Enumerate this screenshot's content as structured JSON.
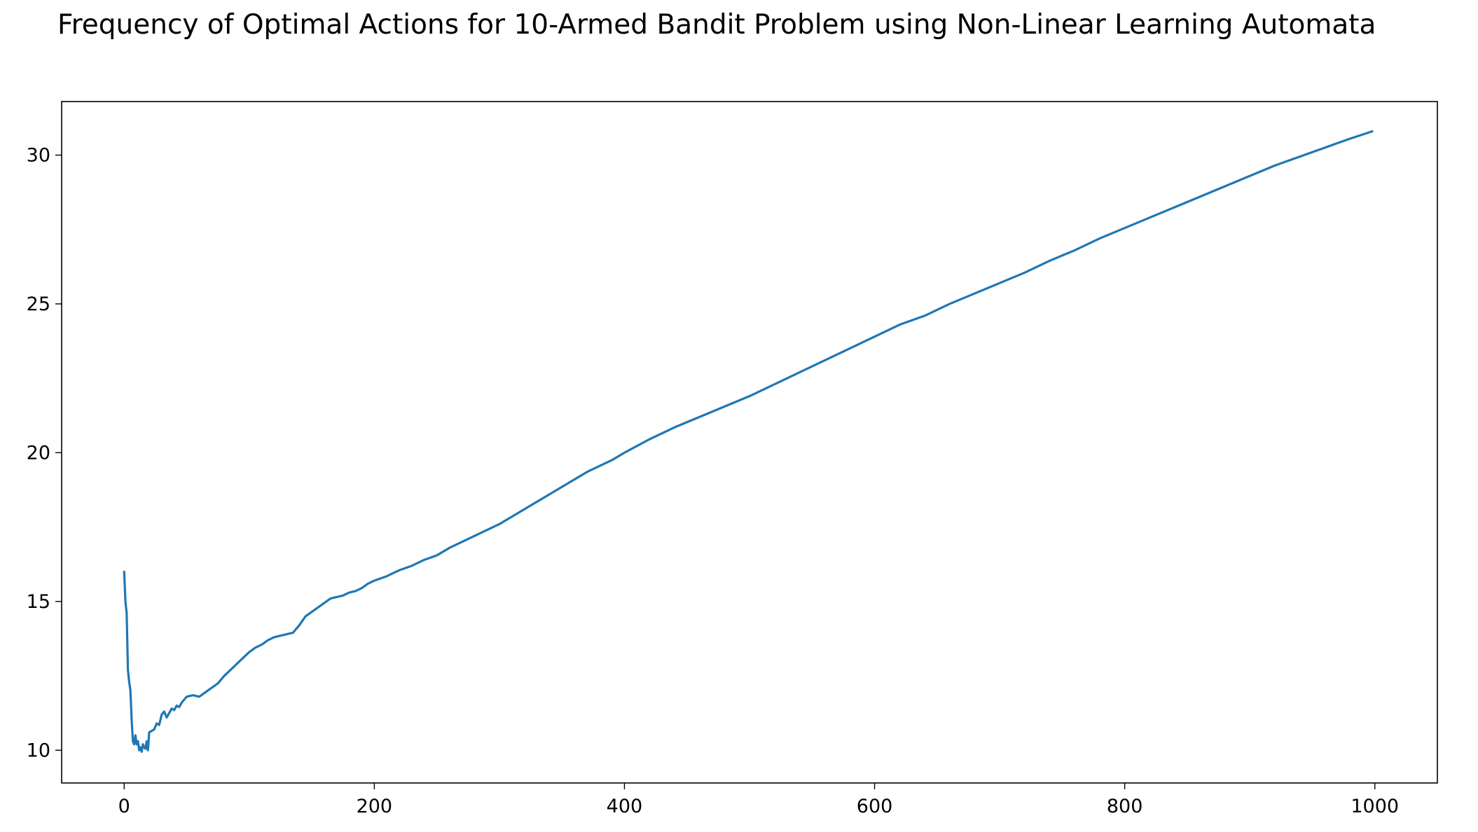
{
  "chart_data": {
    "type": "line",
    "title": "Frequency of Optimal Actions for 10-Armed Bandit Problem using Non-Linear Learning Automata",
    "xlabel": "",
    "ylabel": "",
    "xlim": [
      -50,
      1050
    ],
    "ylim": [
      8.9,
      31.8
    ],
    "grid": false,
    "x_ticks": [
      0,
      200,
      400,
      600,
      800,
      1000
    ],
    "y_ticks": [
      10,
      15,
      20,
      25,
      30
    ],
    "line_color": "#1f77b4",
    "series": [
      {
        "x": [
          0,
          1,
          2,
          3,
          4,
          5,
          6,
          7,
          8,
          9,
          10,
          11,
          12,
          13,
          14,
          15,
          16,
          17,
          18,
          19,
          20,
          22,
          24,
          26,
          28,
          30,
          32,
          34,
          36,
          38,
          40,
          42,
          44,
          46,
          48,
          50,
          55,
          60,
          65,
          70,
          75,
          80,
          85,
          90,
          95,
          100,
          105,
          110,
          115,
          120,
          125,
          130,
          135,
          140,
          145,
          150,
          155,
          160,
          165,
          170,
          175,
          180,
          185,
          190,
          195,
          200,
          210,
          220,
          230,
          240,
          250,
          260,
          270,
          280,
          290,
          300,
          310,
          320,
          330,
          340,
          350,
          360,
          370,
          380,
          390,
          400,
          420,
          440,
          460,
          480,
          500,
          520,
          540,
          560,
          580,
          600,
          620,
          640,
          660,
          680,
          700,
          720,
          740,
          760,
          780,
          800,
          820,
          840,
          860,
          880,
          900,
          920,
          940,
          960,
          980,
          998
        ],
        "y": [
          16.0,
          15.0,
          14.6,
          12.7,
          12.3,
          12.0,
          11.0,
          10.3,
          10.2,
          10.5,
          10.2,
          10.3,
          10.0,
          10.1,
          9.95,
          10.2,
          10.1,
          10.05,
          10.3,
          10.0,
          10.6,
          10.65,
          10.7,
          10.9,
          10.85,
          11.2,
          11.3,
          11.1,
          11.25,
          11.4,
          11.35,
          11.5,
          11.45,
          11.6,
          11.7,
          11.8,
          11.85,
          11.8,
          11.95,
          12.1,
          12.25,
          12.5,
          12.7,
          12.9,
          13.1,
          13.3,
          13.45,
          13.55,
          13.7,
          13.8,
          13.85,
          13.9,
          13.95,
          14.2,
          14.5,
          14.65,
          14.8,
          14.95,
          15.1,
          15.15,
          15.2,
          15.3,
          15.35,
          15.45,
          15.6,
          15.7,
          15.85,
          16.05,
          16.2,
          16.4,
          16.55,
          16.8,
          17.0,
          17.2,
          17.4,
          17.6,
          17.85,
          18.1,
          18.35,
          18.6,
          18.85,
          19.1,
          19.35,
          19.55,
          19.75,
          20.0,
          20.45,
          20.85,
          21.2,
          21.55,
          21.9,
          22.3,
          22.7,
          23.1,
          23.5,
          23.9,
          24.3,
          24.6,
          25.0,
          25.35,
          25.7,
          26.05,
          26.45,
          26.8,
          27.2,
          27.55,
          27.9,
          28.25,
          28.6,
          28.95,
          29.3,
          29.65,
          29.95,
          30.25,
          30.55,
          30.8
        ]
      }
    ]
  }
}
